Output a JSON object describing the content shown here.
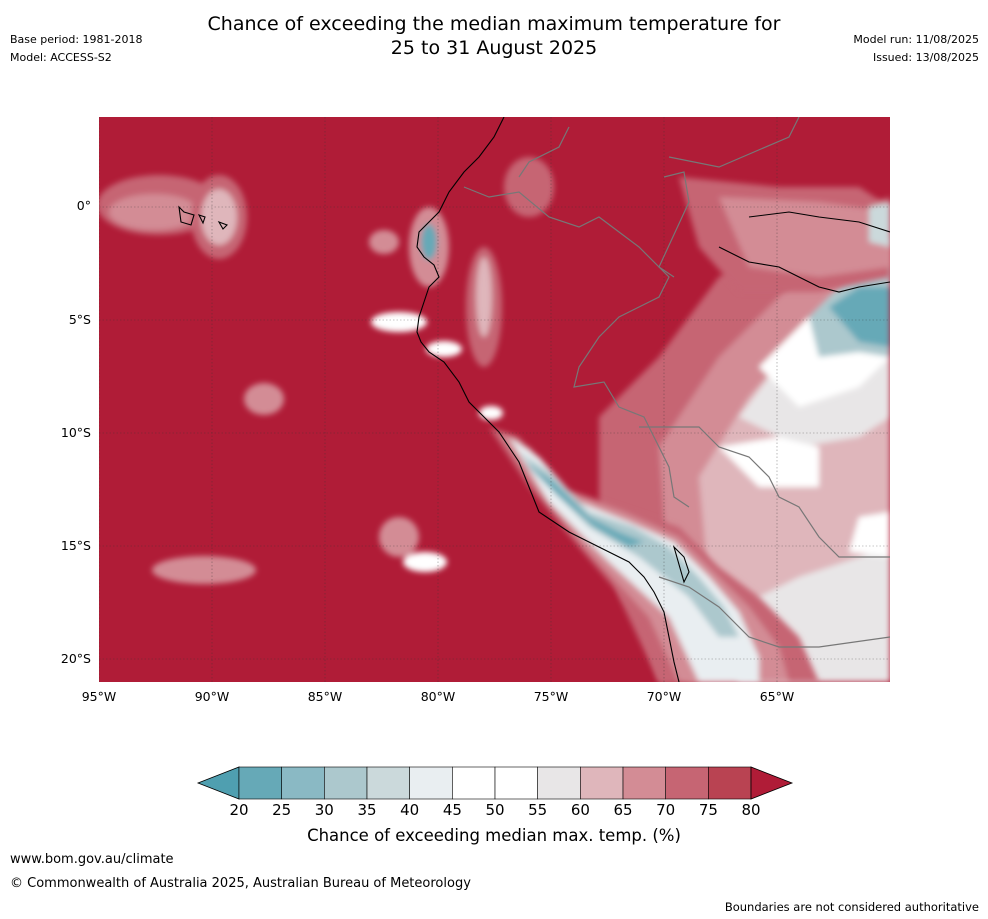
{
  "header": {
    "title_line1": "Chance of exceeding the median maximum temperature for",
    "title_line2": "25 to 31 August 2025",
    "base_period": "Base period: 1981-2018",
    "model": "Model: ACCESS-S2",
    "model_run": "Model run: 11/08/2025",
    "issued": "Issued: 13/08/2025"
  },
  "map": {
    "lat_labels": [
      "0°",
      "5°S",
      "10°S",
      "15°S",
      "20°S"
    ],
    "lon_labels": [
      "95°W",
      "90°W",
      "85°W",
      "80°W",
      "75°W",
      "70°W",
      "65°W"
    ],
    "base_color": "#b01c37"
  },
  "colorbar": {
    "ticks": [
      "20",
      "25",
      "30",
      "35",
      "40",
      "45",
      "50",
      "55",
      "60",
      "65",
      "70",
      "75",
      "80"
    ],
    "colors": [
      "#66a9b7",
      "#8ab9c4",
      "#acc8cd",
      "#cbd9db",
      "#e9eef1",
      "#ffffff",
      "#ffffff",
      "#e8e6e7",
      "#dfb6bb",
      "#d38c95",
      "#c66573",
      "#b94352"
    ],
    "under_color": "#4f9fb0",
    "over_color": "#b01c37",
    "label": "Chance of exceeding median max. temp. (%)"
  },
  "footer": {
    "url": "www.bom.gov.au/climate",
    "copyright": "© Commonwealth of Australia 2025, Australian Bureau of Meteorology",
    "disclaimer": "Boundaries are not considered authoritative"
  }
}
